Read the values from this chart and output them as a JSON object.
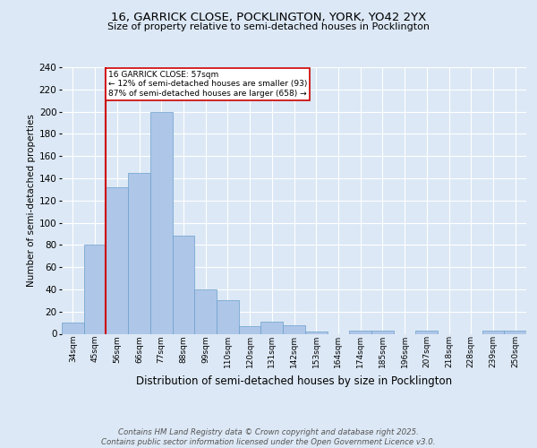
{
  "title1": "16, GARRICK CLOSE, POCKLINGTON, YORK, YO42 2YX",
  "title2": "Size of property relative to semi-detached houses in Pocklington",
  "xlabel": "Distribution of semi-detached houses by size in Pocklington",
  "ylabel": "Number of semi-detached properties",
  "categories": [
    "34sqm",
    "45sqm",
    "56sqm",
    "66sqm",
    "77sqm",
    "88sqm",
    "99sqm",
    "110sqm",
    "120sqm",
    "131sqm",
    "142sqm",
    "153sqm",
    "164sqm",
    "174sqm",
    "185sqm",
    "196sqm",
    "207sqm",
    "218sqm",
    "228sqm",
    "239sqm",
    "250sqm"
  ],
  "values": [
    10,
    80,
    132,
    145,
    200,
    88,
    40,
    30,
    7,
    11,
    8,
    2,
    0,
    3,
    3,
    0,
    3,
    0,
    0,
    3,
    3
  ],
  "bar_color": "#aec6e8",
  "bar_edge_color": "#6aa0cc",
  "annotation_title": "16 GARRICK CLOSE: 57sqm",
  "annotation_line1": "← 12% of semi-detached houses are smaller (93)",
  "annotation_line2": "87% of semi-detached houses are larger (658) →",
  "annotation_box_color": "#ffffff",
  "annotation_box_edge": "#cc0000",
  "vline_color": "#cc0000",
  "vline_x": 1.5,
  "ylim": [
    0,
    240
  ],
  "yticks": [
    0,
    20,
    40,
    60,
    80,
    100,
    120,
    140,
    160,
    180,
    200,
    220,
    240
  ],
  "footer": "Contains HM Land Registry data © Crown copyright and database right 2025.\nContains public sector information licensed under the Open Government Licence v3.0.",
  "background_color": "#dce8f5",
  "grid_color": "#ffffff"
}
